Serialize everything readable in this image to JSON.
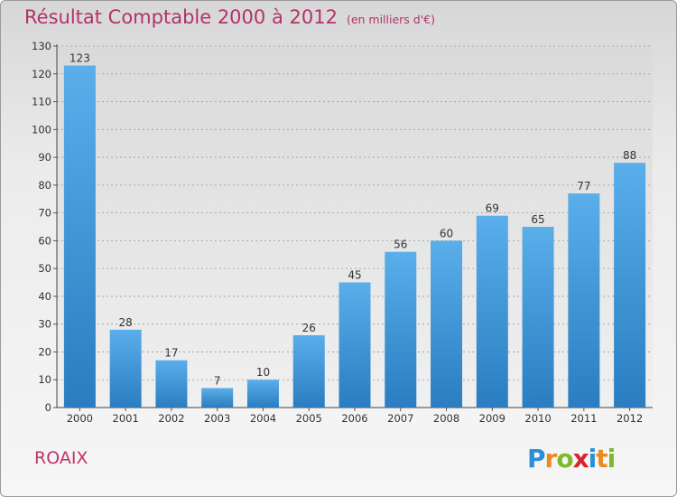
{
  "header": {
    "title": "Résultat Comptable 2000 à 2012",
    "subtitle": "(en milliers d'€)"
  },
  "footer": {
    "commune": "ROAIX",
    "logo": "Proxiti",
    "logo_letters": [
      {
        "char": "P",
        "color": "#2a8fd4"
      },
      {
        "char": "r",
        "color": "#ea8b1f"
      },
      {
        "char": "o",
        "color": "#7cba2a"
      },
      {
        "char": "x",
        "color": "#d4262c"
      },
      {
        "char": "i",
        "color": "#2a8fd4"
      },
      {
        "char": "t",
        "color": "#ea8b1f"
      },
      {
        "char": "i",
        "color": "#7cba2a"
      }
    ]
  },
  "colors": {
    "bar_top": "#5aaeea",
    "bar_bottom": "#2a7dc0",
    "title": "#b2326a",
    "grid": "#9a9a9a"
  },
  "chart_data": {
    "type": "bar",
    "title": "Résultat Comptable 2000 à 2012",
    "subtitle": "(en milliers d'€)",
    "categories": [
      "2000",
      "2001",
      "2002",
      "2003",
      "2004",
      "2005",
      "2006",
      "2007",
      "2008",
      "2009",
      "2010",
      "2011",
      "2012"
    ],
    "values": [
      123,
      28,
      17,
      7,
      10,
      26,
      45,
      56,
      60,
      69,
      65,
      77,
      88
    ],
    "xlabel": "",
    "ylabel": "",
    "ylim": [
      0,
      130
    ],
    "yticks": [
      0,
      10,
      20,
      30,
      40,
      50,
      60,
      70,
      80,
      90,
      100,
      110,
      120,
      130
    ],
    "grid": true
  }
}
